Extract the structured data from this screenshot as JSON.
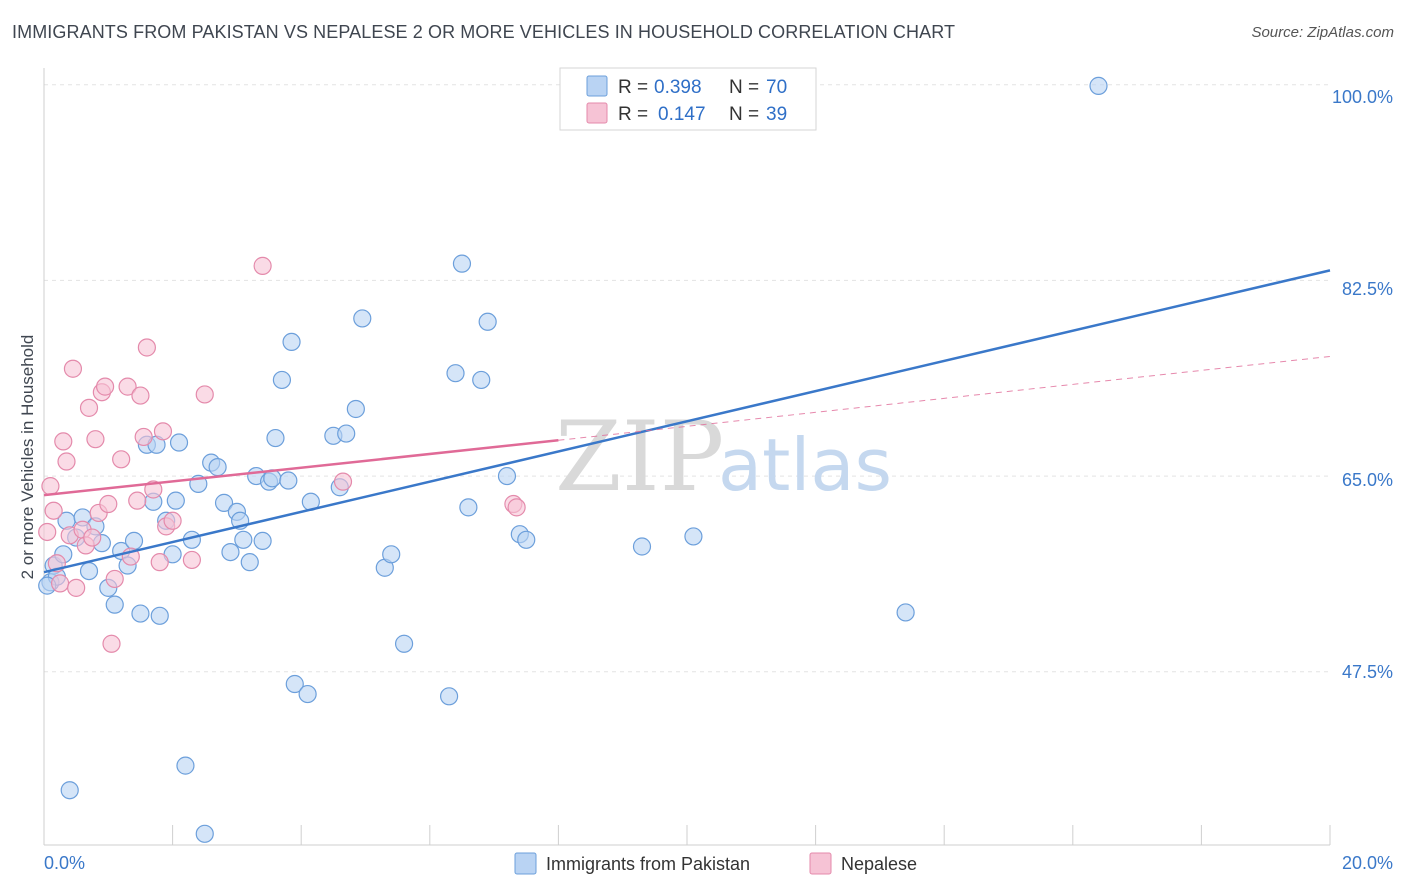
{
  "title": "IMMIGRANTS FROM PAKISTAN VS NEPALESE 2 OR MORE VEHICLES IN HOUSEHOLD CORRELATION CHART",
  "source": "Source: ZipAtlas.com",
  "colors": {
    "blue": "#3a78c9",
    "blue_fill": "#b9d3f3",
    "pink": "#e06a97",
    "pink_fill": "#f6c3d5"
  },
  "legend": {
    "r_label": "R =",
    "n_label": "N =",
    "series1": {
      "r": "0.398",
      "n": "70"
    },
    "series2": {
      "r": "0.147",
      "n": "39"
    }
  },
  "watermark": {
    "zip": "ZIP",
    "atlas": "atlas"
  },
  "chart_data": {
    "type": "scatter",
    "title": "IMMIGRANTS FROM PAKISTAN VS NEPALESE 2 OR MORE VEHICLES IN HOUSEHOLD CORRELATION CHART",
    "xlabel": "",
    "ylabel": "2 or more Vehicles in Household",
    "xlim": [
      0,
      20
    ],
    "ylim": [
      32,
      101.5
    ],
    "x_tick_labels": [
      "0.0%",
      "20.0%"
    ],
    "y_tick_labels": [
      "100.0%",
      "82.5%",
      "65.0%",
      "47.5%"
    ],
    "y_tick_values": [
      100,
      82.5,
      65,
      47.5
    ],
    "series": [
      {
        "name": "Immigrants from Pakistan",
        "color": "#3a78c9",
        "trend": {
          "x": [
            0,
            20
          ],
          "y": [
            56.4,
            83.4
          ]
        },
        "points": [
          [
            0.1,
            55.5
          ],
          [
            0.15,
            57.0
          ],
          [
            0.2,
            56.0
          ],
          [
            0.3,
            58.0
          ],
          [
            0.35,
            61.0
          ],
          [
            0.4,
            36.9
          ],
          [
            0.5,
            59.5
          ],
          [
            0.6,
            61.3
          ],
          [
            0.7,
            56.5
          ],
          [
            0.8,
            60.5
          ],
          [
            0.9,
            59.0
          ],
          [
            1.0,
            55.0
          ],
          [
            1.1,
            53.5
          ],
          [
            1.2,
            58.3
          ],
          [
            1.3,
            57.0
          ],
          [
            1.4,
            59.2
          ],
          [
            1.5,
            52.7
          ],
          [
            1.6,
            67.8
          ],
          [
            1.7,
            62.7
          ],
          [
            1.75,
            67.8
          ],
          [
            1.8,
            52.5
          ],
          [
            1.9,
            61.0
          ],
          [
            2.0,
            58.0
          ],
          [
            2.05,
            62.8
          ],
          [
            2.1,
            68.0
          ],
          [
            2.2,
            39.1
          ],
          [
            2.3,
            59.3
          ],
          [
            2.4,
            64.3
          ],
          [
            2.5,
            33.0
          ],
          [
            2.6,
            66.2
          ],
          [
            2.7,
            65.8
          ],
          [
            2.8,
            62.6
          ],
          [
            2.9,
            58.2
          ],
          [
            3.0,
            61.8
          ],
          [
            3.05,
            61.0
          ],
          [
            3.1,
            59.3
          ],
          [
            3.2,
            57.3
          ],
          [
            3.3,
            65.0
          ],
          [
            3.4,
            59.2
          ],
          [
            3.5,
            64.5
          ],
          [
            3.55,
            64.8
          ],
          [
            3.6,
            68.4
          ],
          [
            3.7,
            73.6
          ],
          [
            3.8,
            64.6
          ],
          [
            3.85,
            77.0
          ],
          [
            3.9,
            46.4
          ],
          [
            4.1,
            45.5
          ],
          [
            4.15,
            62.7
          ],
          [
            4.5,
            68.6
          ],
          [
            4.6,
            64.0
          ],
          [
            4.7,
            68.8
          ],
          [
            4.85,
            71.0
          ],
          [
            4.95,
            79.1
          ],
          [
            5.3,
            56.8
          ],
          [
            5.4,
            58.0
          ],
          [
            5.6,
            50.0
          ],
          [
            6.3,
            45.3
          ],
          [
            6.4,
            74.2
          ],
          [
            6.5,
            84.0
          ],
          [
            6.6,
            62.2
          ],
          [
            6.8,
            73.6
          ],
          [
            6.9,
            78.8
          ],
          [
            7.2,
            65.0
          ],
          [
            7.4,
            59.8
          ],
          [
            7.5,
            59.3
          ],
          [
            9.3,
            58.7
          ],
          [
            10.1,
            59.6
          ],
          [
            13.4,
            52.8
          ],
          [
            16.4,
            99.9
          ],
          [
            0.05,
            55.2
          ]
        ]
      },
      {
        "name": "Nepalese",
        "color": "#e06a97",
        "trend": {
          "x": [
            0,
            8.0
          ],
          "y": [
            63.3,
            68.2
          ]
        },
        "trend_ext": {
          "x": [
            8.0,
            20
          ],
          "y": [
            68.2,
            75.7
          ]
        },
        "points": [
          [
            0.05,
            60.0
          ],
          [
            0.1,
            64.1
          ],
          [
            0.15,
            61.9
          ],
          [
            0.2,
            57.2
          ],
          [
            0.25,
            55.4
          ],
          [
            0.3,
            68.1
          ],
          [
            0.35,
            66.3
          ],
          [
            0.4,
            59.7
          ],
          [
            0.45,
            74.6
          ],
          [
            0.5,
            55.0
          ],
          [
            0.6,
            60.2
          ],
          [
            0.65,
            58.8
          ],
          [
            0.7,
            71.1
          ],
          [
            0.75,
            59.5
          ],
          [
            0.8,
            68.3
          ],
          [
            0.85,
            61.7
          ],
          [
            0.9,
            72.5
          ],
          [
            0.95,
            73.0
          ],
          [
            1.0,
            62.5
          ],
          [
            1.05,
            50.0
          ],
          [
            1.1,
            55.8
          ],
          [
            1.2,
            66.5
          ],
          [
            1.3,
            73.0
          ],
          [
            1.35,
            57.8
          ],
          [
            1.45,
            62.8
          ],
          [
            1.5,
            72.2
          ],
          [
            1.55,
            68.5
          ],
          [
            1.6,
            76.5
          ],
          [
            1.7,
            63.8
          ],
          [
            1.8,
            57.3
          ],
          [
            1.85,
            69.0
          ],
          [
            1.9,
            60.5
          ],
          [
            2.0,
            61.0
          ],
          [
            2.3,
            57.5
          ],
          [
            2.5,
            72.3
          ],
          [
            3.4,
            83.8
          ],
          [
            4.65,
            64.5
          ],
          [
            7.3,
            62.5
          ],
          [
            7.35,
            62.2
          ]
        ]
      }
    ]
  },
  "bottom_legend": {
    "item1": "Immigrants from Pakistan",
    "item2": "Nepalese"
  }
}
